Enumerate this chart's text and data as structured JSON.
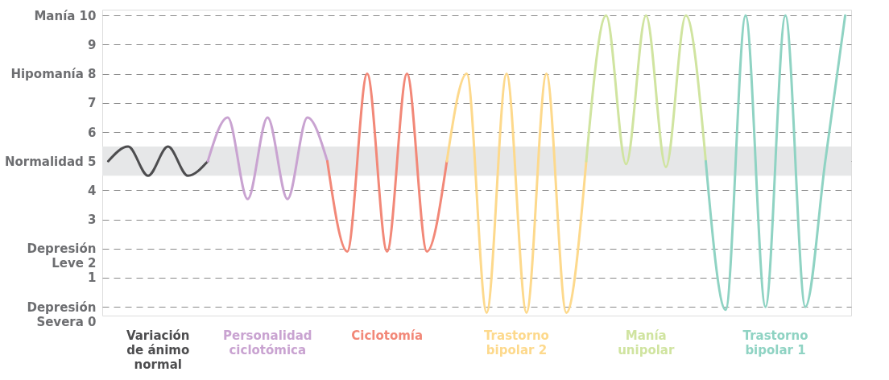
{
  "chart_data": {
    "type": "line",
    "categories": [
      null,
      null,
      null,
      null,
      null,
      null,
      null,
      null,
      null,
      null,
      null,
      null,
      null,
      null,
      null,
      null,
      null,
      null,
      null,
      null,
      null,
      null,
      null,
      null,
      null,
      null,
      null,
      null,
      null,
      null,
      null,
      null,
      null,
      null,
      null,
      null,
      null,
      null
    ],
    "series": [
      {
        "name": "Variación de ánimo normal",
        "color": "#4d4d4f",
        "values": [
          5.0,
          5.5,
          4.5,
          5.5,
          4.5,
          5.0,
          null,
          null,
          null,
          null,
          null,
          null,
          null,
          null,
          null,
          null,
          null,
          null,
          null,
          null,
          null,
          null,
          null,
          null,
          null,
          null,
          null,
          null,
          null,
          null,
          null,
          null,
          null,
          null,
          null,
          null,
          null,
          null
        ]
      },
      {
        "name": "Personalidad ciclotómica",
        "color": "#c9a3d1",
        "values": [
          null,
          null,
          null,
          null,
          null,
          5.0,
          6.5,
          3.7,
          6.5,
          3.7,
          6.5,
          5.0,
          null,
          null,
          null,
          null,
          null,
          null,
          null,
          null,
          null,
          null,
          null,
          null,
          null,
          null,
          null,
          null,
          null,
          null,
          null,
          null,
          null,
          null,
          null,
          null,
          null,
          null
        ]
      },
      {
        "name": "Ciclotomía",
        "color": "#f28878",
        "values": [
          null,
          null,
          null,
          null,
          null,
          null,
          null,
          null,
          null,
          null,
          null,
          5.0,
          1.9,
          8,
          1.9,
          8,
          1.9,
          5.0,
          null,
          null,
          null,
          null,
          null,
          null,
          null,
          null,
          null,
          null,
          null,
          null,
          null,
          null,
          null,
          null,
          null,
          null,
          null,
          null
        ]
      },
      {
        "name": "Trastorno bipolar 2",
        "color": "#fdd98c",
        "values": [
          null,
          null,
          null,
          null,
          null,
          null,
          null,
          null,
          null,
          null,
          null,
          null,
          null,
          null,
          null,
          null,
          null,
          5.0,
          8,
          -0.2,
          8,
          -0.2,
          8,
          -0.2,
          5.0,
          null,
          null,
          null,
          null,
          null,
          null,
          null,
          null,
          null,
          null,
          null,
          null,
          null
        ]
      },
      {
        "name": "Manía unipolar",
        "color": "#d0e4a0",
        "values": [
          null,
          null,
          null,
          null,
          null,
          null,
          null,
          null,
          null,
          null,
          null,
          null,
          null,
          null,
          null,
          null,
          null,
          null,
          null,
          null,
          null,
          null,
          null,
          null,
          5.0,
          10,
          4.9,
          10,
          4.8,
          10,
          5.0,
          null,
          null,
          null,
          null,
          null,
          null,
          null
        ]
      },
      {
        "name": "Trastorno bipolar 1",
        "color": "#8fd3c3",
        "values": [
          null,
          null,
          null,
          null,
          null,
          null,
          null,
          null,
          null,
          null,
          null,
          null,
          null,
          null,
          null,
          null,
          null,
          null,
          null,
          null,
          null,
          null,
          null,
          null,
          null,
          null,
          null,
          null,
          null,
          null,
          5.0,
          -0.1,
          10,
          0,
          10,
          0,
          5.0,
          10
        ]
      }
    ],
    "ylim": [
      -0.3,
      10.2
    ],
    "yticks": [
      {
        "value": 0,
        "label": "Depresión Severa 0"
      },
      1,
      {
        "value": 2,
        "label": "Depresión Leve 2"
      },
      3,
      4,
      {
        "value": 5,
        "label": "Normalidad 5"
      },
      6,
      7,
      {
        "value": 8,
        "label": "Hipomanía 8"
      },
      9,
      {
        "value": 10,
        "label": "Manía 10"
      }
    ],
    "bands": [
      {
        "axis": "y",
        "from": 4.5,
        "to": 5.5,
        "color": "#e6e7e8"
      }
    ],
    "grid": "y"
  }
}
